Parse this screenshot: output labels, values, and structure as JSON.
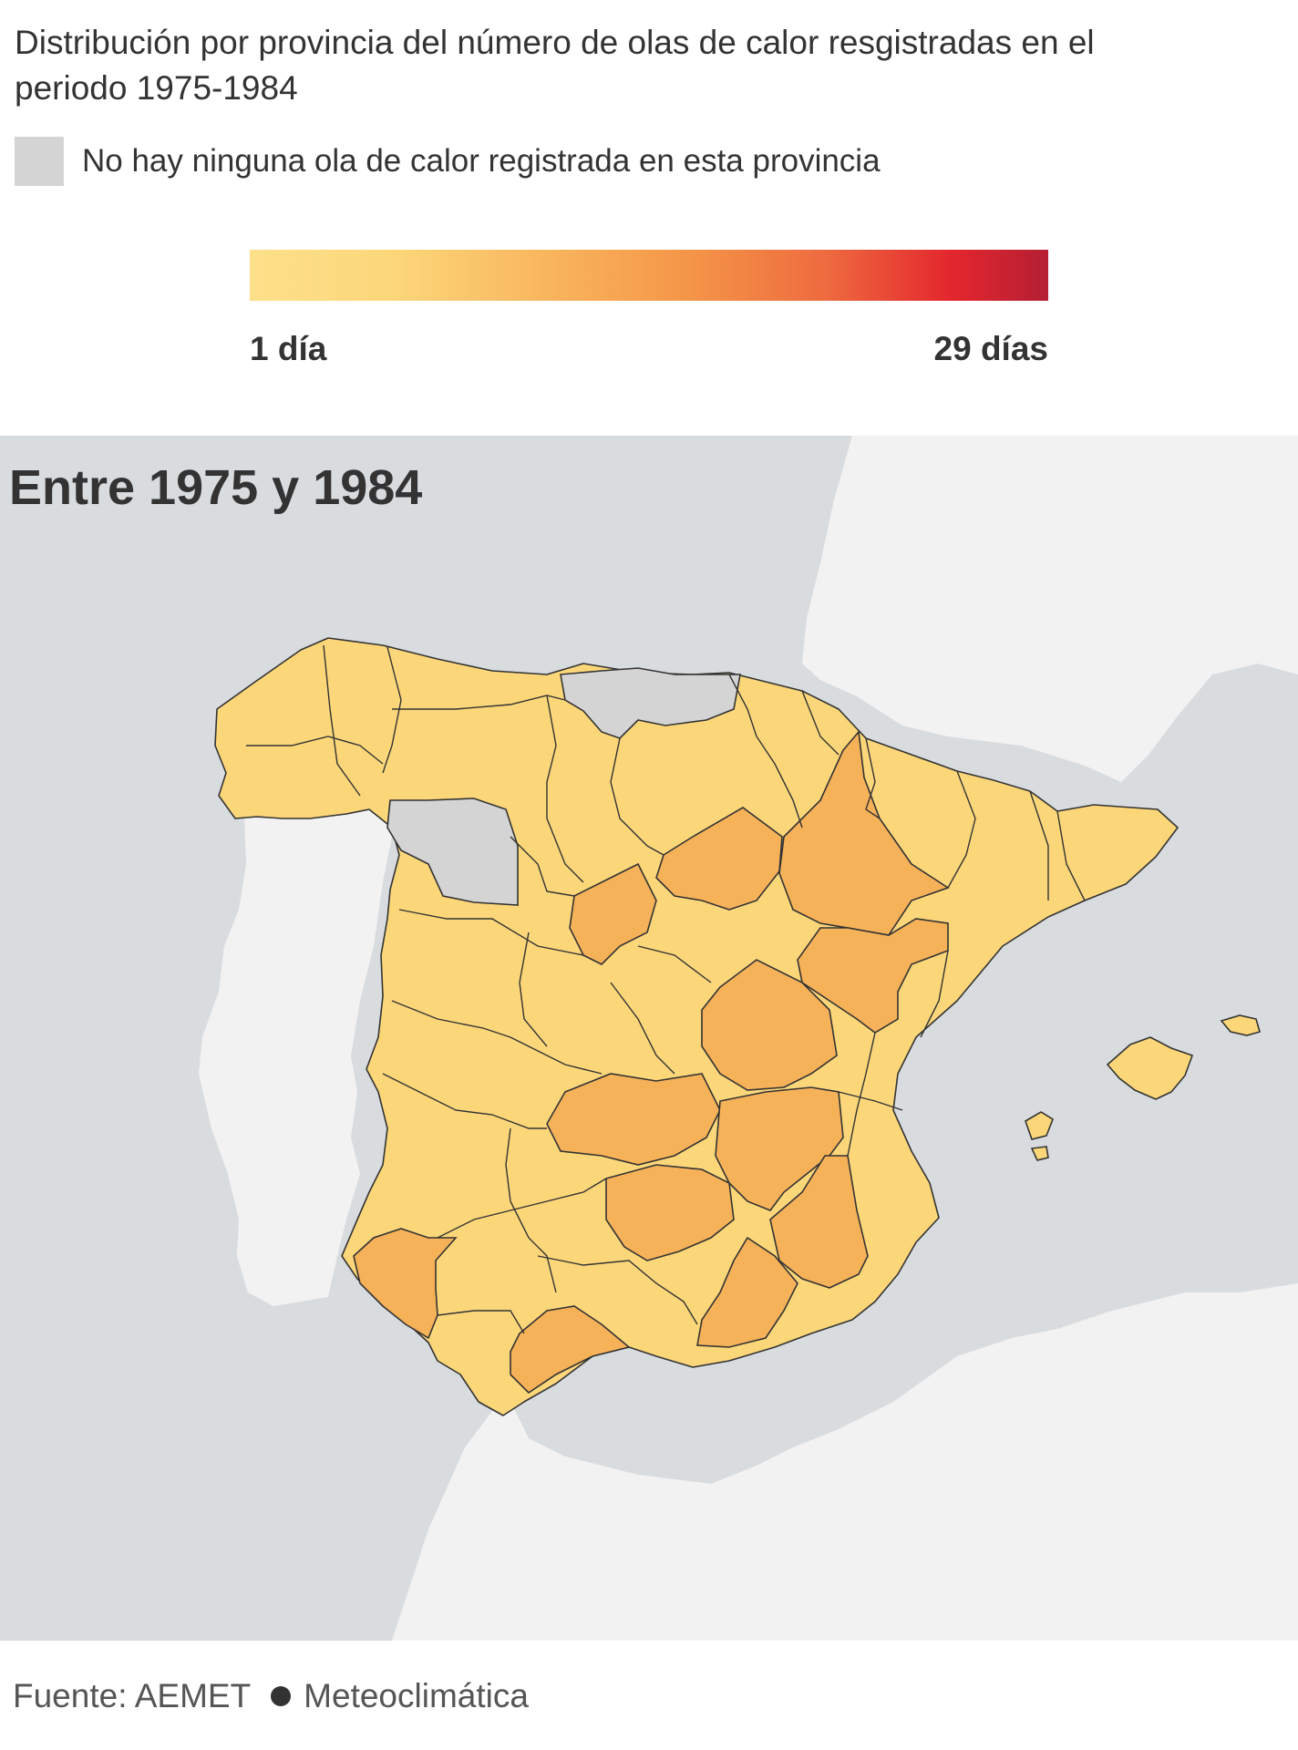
{
  "header": {
    "title": "Distribución por provincia del número de olas de calor resgistradas en el periodo 1975-1984",
    "no_data_label": "No hay ninguna ola de calor registrada en esta provincia"
  },
  "scale": {
    "min_label": "1 día",
    "max_label": "29 días",
    "min_value": 1,
    "max_value": 29,
    "colors": [
      "#fde08a",
      "#f9b45d",
      "#f49548",
      "#e3262d",
      "#b51f34"
    ]
  },
  "map": {
    "title": "Entre 1975 y 1984",
    "colors": {
      "sea": "#d9dcdf",
      "land": "#f2f2f2",
      "no_data": "#d4d4d4",
      "low": "#fcd77a",
      "mid": "#f6b259",
      "border": "#333333"
    }
  },
  "footer": {
    "source_label": "Fuente: AEMET",
    "source_label_2": "Meteoclimática"
  }
}
